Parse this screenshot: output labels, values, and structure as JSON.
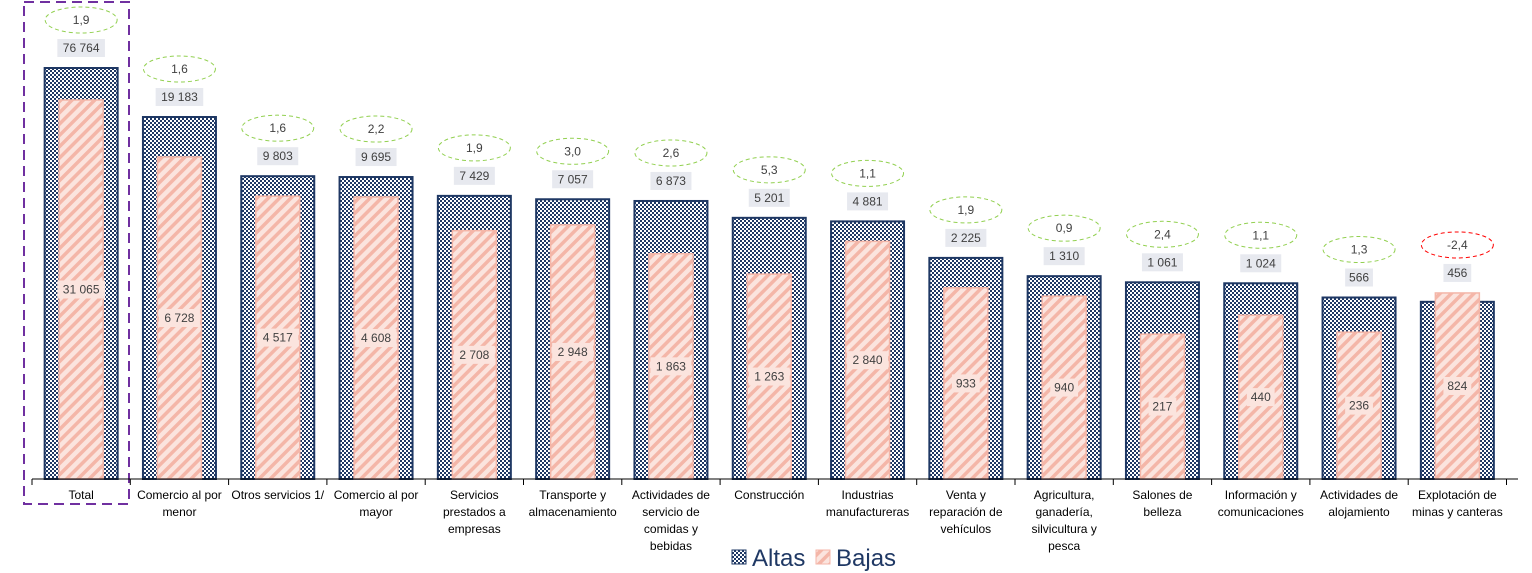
{
  "chart_data": {
    "type": "bar",
    "categories": [
      "Total",
      "Comercio al por menor",
      "Otros servicios 1/",
      "Comercio al por mayor",
      "Servicios prestados a empresas",
      "Transporte y almacenamiento",
      "Actividades de servicio de comidas y bebidas",
      "Construcción",
      "Industrias manufactureras",
      "Venta y reparación de vehículos",
      "Agricultura, ganadería, silvicultura y pesca",
      "Salones de belleza",
      "Información y comunicaciones",
      "Actividades de alojamiento",
      "Explotación de minas y canteras"
    ],
    "category_lines": [
      [
        "Total"
      ],
      [
        "Comercio al por",
        "menor"
      ],
      [
        "Otros servicios 1/"
      ],
      [
        "Comercio al por",
        "mayor"
      ],
      [
        "Servicios",
        "prestados a",
        "empresas"
      ],
      [
        "Transporte y",
        "almacenamiento"
      ],
      [
        "Actividades de",
        "servicio de",
        "comidas y",
        "bebidas"
      ],
      [
        "Construcción"
      ],
      [
        "Industrias",
        "manufactureras"
      ],
      [
        "Venta y",
        "reparación de",
        "vehículos"
      ],
      [
        "Agricultura,",
        "ganadería,",
        "silvicultura y",
        "pesca"
      ],
      [
        "Salones de",
        "belleza"
      ],
      [
        "Información y",
        "comunicaciones"
      ],
      [
        "Actividades de",
        "alojamiento"
      ],
      [
        "Explotación de",
        "minas y canteras"
      ]
    ],
    "series": [
      {
        "name": "Altas",
        "values": [
          76764,
          19183,
          9803,
          9695,
          7429,
          7057,
          6873,
          5201,
          4881,
          2225,
          1310,
          1061,
          1024,
          566,
          456
        ],
        "labels": [
          "76 764",
          "19 183",
          "9 803",
          "9 695",
          "7 429",
          "7 057",
          "6 873",
          "5 201",
          "4 881",
          "2 225",
          "1 310",
          "1 061",
          "1 024",
          "566",
          "456"
        ],
        "color": "#1f3864"
      },
      {
        "name": "Bajas",
        "values": [
          31065,
          6728,
          4517,
          4608,
          2708,
          2948,
          1863,
          1263,
          2840,
          933,
          940,
          217,
          440,
          236,
          824
        ],
        "labels": [
          "31 065",
          "6 728",
          "4 517",
          "4 608",
          "2 708",
          "2 948",
          "1 863",
          "1 263",
          "2 840",
          "933",
          "940",
          "217",
          "440",
          "236",
          "824"
        ],
        "color": "#f4b6a8"
      }
    ],
    "annotations": {
      "values": [
        1.9,
        1.6,
        1.6,
        2.2,
        1.9,
        3.0,
        2.6,
        5.3,
        1.1,
        1.9,
        0.9,
        2.4,
        1.1,
        1.3,
        -2.4
      ],
      "labels": [
        "1,9",
        "1,6",
        "1,6",
        "2,2",
        "1,9",
        "3,0",
        "2,6",
        "5,3",
        "1,1",
        "1,9",
        "0,9",
        "2,4",
        "1,1",
        "1,3",
        "-2,4"
      ],
      "positive_color": "#92d050",
      "negative_color": "#ff0000"
    },
    "highlight_category": "Total",
    "highlight_color": "#7030a0",
    "scale": "non-uniform (bar heights not proportional to values)",
    "legend": {
      "position": "bottom-center",
      "items": [
        "Altas",
        "Bajas"
      ]
    }
  }
}
